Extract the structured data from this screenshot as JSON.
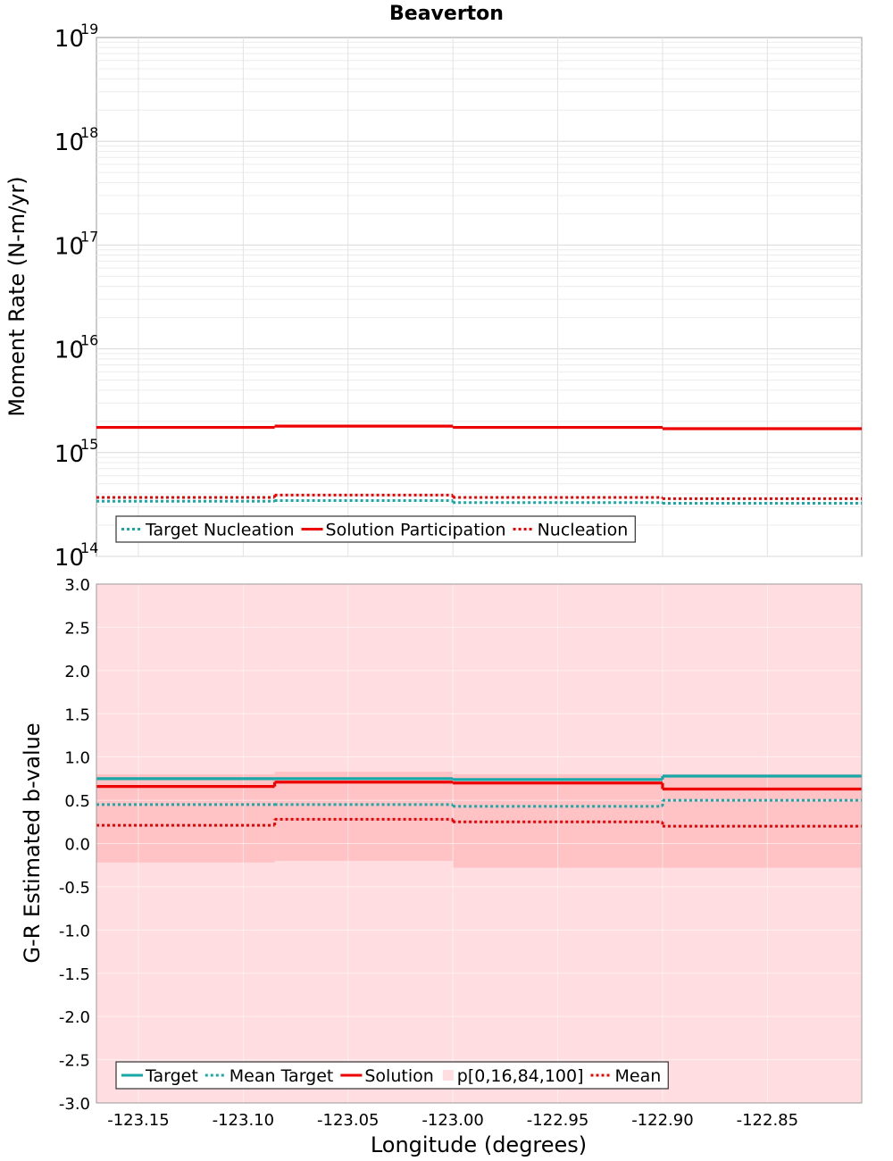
{
  "chart_data": [
    {
      "type": "line",
      "title": "Beaverton",
      "ylabel": "Moment Rate (N-m/yr)",
      "yscale": "log",
      "ylim": [
        100000000000000.0,
        1e+19
      ],
      "xlim": [
        -123.17,
        -122.805
      ],
      "ytick_base": "10",
      "yticks": [
        {
          "value": 14,
          "exp": "14"
        },
        {
          "value": 15,
          "exp": "15"
        },
        {
          "value": 16,
          "exp": "16"
        },
        {
          "value": 17,
          "exp": "17"
        },
        {
          "value": 18,
          "exp": "18"
        },
        {
          "value": 19,
          "exp": "19"
        }
      ],
      "bins": [
        [
          -123.17,
          -123.085
        ],
        [
          -123.085,
          -123.0
        ],
        [
          -123.0,
          -122.9
        ],
        [
          -122.9,
          -122.805
        ]
      ],
      "series": [
        {
          "name": "Target Nucleation",
          "style": "dotted",
          "color": "#19a8a8",
          "values": [
            340000000000000.0,
            345000000000000.0,
            330000000000000.0,
            325000000000000.0
          ]
        },
        {
          "name": "Solution Participation",
          "style": "solid",
          "color": "#ee0000",
          "values": [
            1750000000000000.0,
            1800000000000000.0,
            1750000000000000.0,
            1700000000000000.0
          ]
        },
        {
          "name": "Nucleation",
          "style": "dotted",
          "color": "#ee0000",
          "values": [
            370000000000000.0,
            390000000000000.0,
            370000000000000.0,
            360000000000000.0
          ]
        }
      ],
      "legend": [
        "Target Nucleation",
        "Solution Participation",
        "Nucleation"
      ]
    },
    {
      "type": "line",
      "ylabel": "G-R Estimated b-value",
      "xlabel": "Longitude (degrees)",
      "ylim": [
        -3.0,
        3.0
      ],
      "xlim": [
        -123.17,
        -122.805
      ],
      "yticks": [
        "-3.0",
        "-2.5",
        "-2.0",
        "-1.5",
        "-1.0",
        "-0.5",
        "0.0",
        "0.5",
        "1.0",
        "1.5",
        "2.0",
        "2.5",
        "3.0"
      ],
      "xticks": [
        "-123.15",
        "-123.10",
        "-123.05",
        "-123.00",
        "-122.95",
        "-122.90",
        "-122.85"
      ],
      "bins": [
        [
          -123.17,
          -123.085
        ],
        [
          -123.085,
          -123.0
        ],
        [
          -123.0,
          -122.9
        ],
        [
          -122.9,
          -122.805
        ]
      ],
      "band_outer": {
        "name": "p[0,16,84,100]",
        "color": "#ffdde0",
        "lower": [
          -3.0,
          -3.0,
          -3.0,
          -3.0
        ],
        "upper": [
          3.0,
          3.0,
          3.0,
          3.0
        ]
      },
      "band_inner": {
        "color": "#ffc2c5",
        "lower": [
          -0.22,
          -0.2,
          -0.28,
          -0.28
        ],
        "upper": [
          0.8,
          0.83,
          0.8,
          0.8
        ]
      },
      "series": [
        {
          "name": "Target",
          "style": "solid",
          "color": "#19a8a8",
          "values": [
            0.75,
            0.75,
            0.74,
            0.78
          ]
        },
        {
          "name": "Mean Target",
          "style": "dotted",
          "color": "#19a8a8",
          "values": [
            0.45,
            0.45,
            0.43,
            0.5
          ]
        },
        {
          "name": "Solution",
          "style": "solid",
          "color": "#ee0000",
          "values": [
            0.66,
            0.71,
            0.7,
            0.63
          ]
        },
        {
          "name": "Mean",
          "style": "dotted",
          "color": "#ee0000",
          "values": [
            0.21,
            0.28,
            0.25,
            0.2
          ]
        }
      ],
      "legend": [
        "Target",
        "Mean Target",
        "Solution",
        "p[0,16,84,100]",
        "Mean"
      ]
    }
  ]
}
